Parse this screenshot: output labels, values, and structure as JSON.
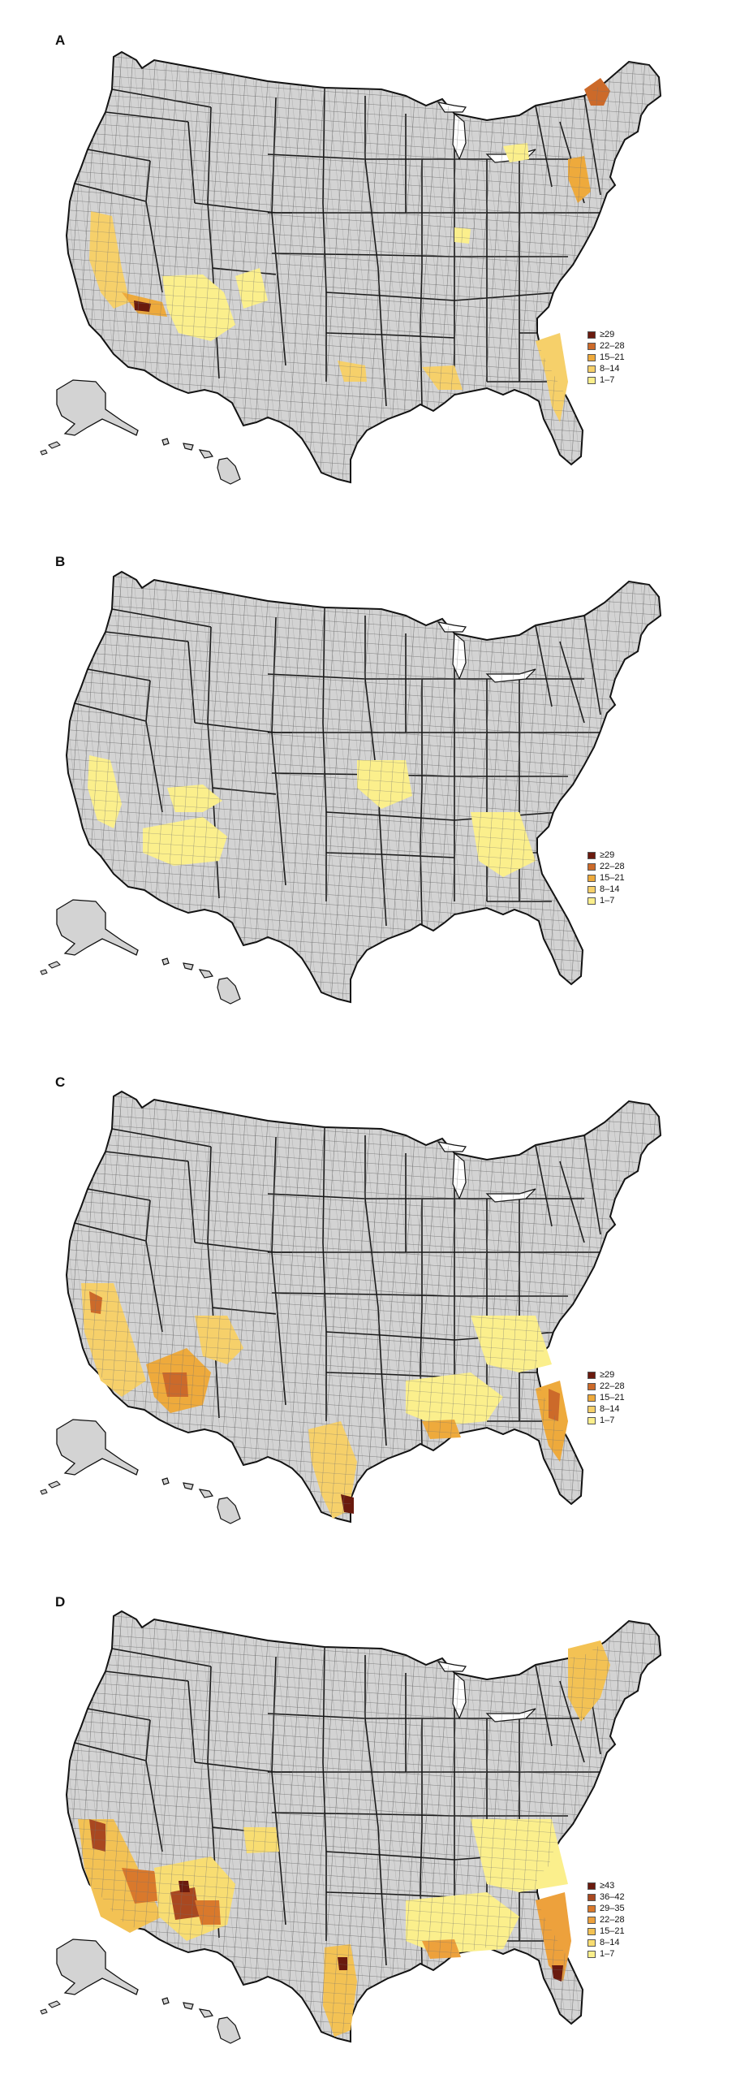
{
  "colors": {
    "base_fill": "#d3d3d3",
    "county_line": "#6f6f6f",
    "state_line": "#1a1a1a",
    "c1": "#fbef8c",
    "c2": "#f6d06a",
    "c3": "#eeaa3c",
    "c4": "#cc6a2a",
    "c5": "#6a1a0e",
    "d1": "#fbef8c",
    "d2": "#f8dd72",
    "d3": "#f3c254",
    "d4": "#eda13c",
    "d5": "#d9792c",
    "d6": "#a94820",
    "d7": "#6a1a0e"
  },
  "panels": [
    {
      "letter": "A",
      "legend": [
        "≥29",
        "22–28",
        "15–21",
        "8–14",
        "1–7"
      ]
    },
    {
      "letter": "B",
      "legend": [
        "≥29",
        "22–28",
        "15–21",
        "8–14",
        "1–7"
      ]
    },
    {
      "letter": "C",
      "legend": [
        "≥29",
        "22–28",
        "15–21",
        "8–14",
        "1–7"
      ]
    },
    {
      "letter": "D",
      "legend": [
        "≥43",
        "36–42",
        "29–35",
        "22–28",
        "15–21",
        "8–14",
        "1–7"
      ]
    }
  ]
}
